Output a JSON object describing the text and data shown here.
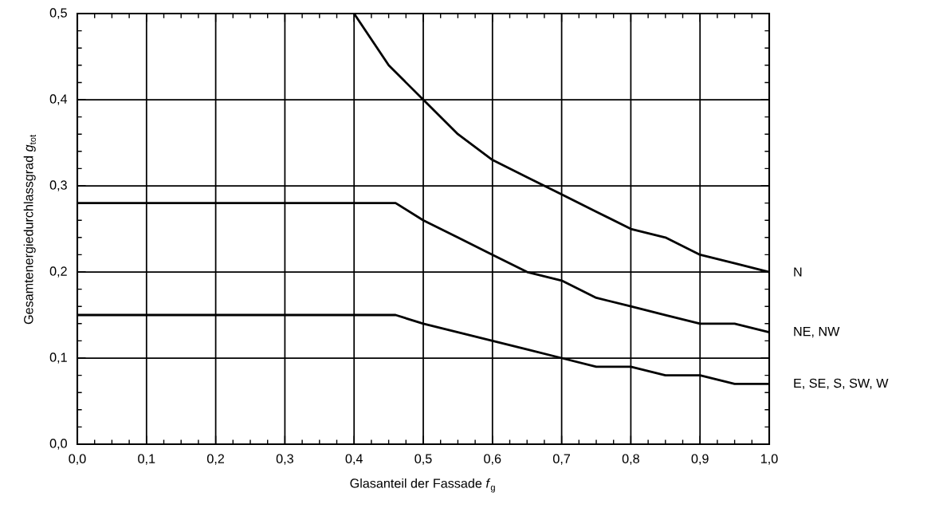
{
  "chart_data": {
    "type": "line",
    "xlabel": "Glasanteil der Fassade *f*$_{g}$",
    "ylabel": "Gesamtenergiedurchlassgrad *g*$_{tot}$",
    "xlim": [
      0,
      1
    ],
    "ylim": [
      0,
      0.5
    ],
    "xticks": [
      {
        "value": 0,
        "label": "0,0"
      },
      {
        "value": 0.1,
        "label": "0,1"
      },
      {
        "value": 0.2,
        "label": "0,2"
      },
      {
        "value": 0.3,
        "label": "0,3"
      },
      {
        "value": 0.4,
        "label": "0,4"
      },
      {
        "value": 0.5,
        "label": "0,5"
      },
      {
        "value": 0.6,
        "label": "0,6"
      },
      {
        "value": 0.7,
        "label": "0,7"
      },
      {
        "value": 0.8,
        "label": "0,8"
      },
      {
        "value": 0.9,
        "label": "0,9"
      },
      {
        "value": 1,
        "label": "1,0"
      }
    ],
    "yticks": [
      {
        "value": 0,
        "label": "0,0"
      },
      {
        "value": 0.1,
        "label": "0,1"
      },
      {
        "value": 0.2,
        "label": "0,2"
      },
      {
        "value": 0.3,
        "label": "0,3"
      },
      {
        "value": 0.4,
        "label": "0,4"
      },
      {
        "value": 0.5,
        "label": "0,5"
      }
    ],
    "grid": true,
    "legend": "right",
    "marker": "none",
    "line_style": "solid",
    "series": [
      {
        "name": "N",
        "color": "#000000",
        "x": [
          0.4,
          0.45,
          0.5,
          0.55,
          0.6,
          0.65,
          0.7,
          0.75,
          0.8,
          0.85,
          0.9,
          0.95,
          1.0
        ],
        "values": [
          0.5,
          0.44,
          0.4,
          0.36,
          0.33,
          0.31,
          0.29,
          0.27,
          0.25,
          0.24,
          0.22,
          0.21,
          0.2
        ]
      },
      {
        "name": "NE, NW",
        "color": "#000000",
        "x": [
          0,
          0.46,
          0.5,
          0.55,
          0.6,
          0.65,
          0.7,
          0.75,
          0.8,
          0.85,
          0.9,
          0.95,
          1.0
        ],
        "values": [
          0.28,
          0.28,
          0.26,
          0.24,
          0.22,
          0.2,
          0.19,
          0.17,
          0.16,
          0.15,
          0.14,
          0.14,
          0.13
        ]
      },
      {
        "name": "E, SE, S, SW, W",
        "color": "#000000",
        "x": [
          0,
          0.46,
          0.5,
          0.55,
          0.6,
          0.65,
          0.7,
          0.75,
          0.8,
          0.85,
          0.9,
          0.95,
          1.0
        ],
        "values": [
          0.15,
          0.15,
          0.14,
          0.13,
          0.12,
          0.11,
          0.1,
          0.09,
          0.09,
          0.08,
          0.08,
          0.07,
          0.07
        ]
      }
    ]
  }
}
